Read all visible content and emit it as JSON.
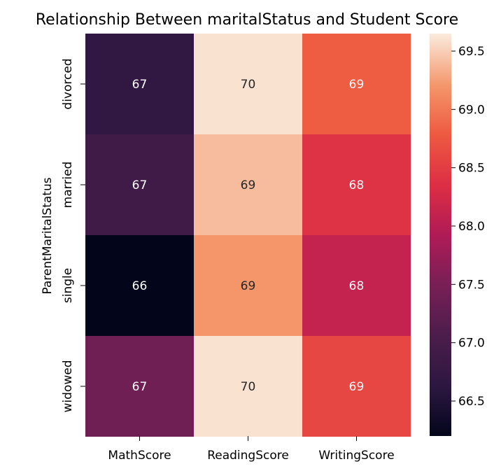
{
  "chart_data": {
    "type": "heatmap",
    "title": "Relationship Between maritalStatus and Student Score",
    "xlabel": "",
    "ylabel": "ParentMaritalStatus",
    "x_categories": [
      "MathScore",
      "ReadingScore",
      "WritingScore"
    ],
    "y_categories": [
      "divorced",
      "married",
      "single",
      "widowed"
    ],
    "values": [
      [
        66.7,
        69.6,
        68.8
      ],
      [
        66.9,
        69.4,
        68.4
      ],
      [
        66.2,
        69.2,
        68.1
      ],
      [
        67.4,
        69.6,
        68.6
      ]
    ],
    "annotations": [
      [
        "67",
        "70",
        "69"
      ],
      [
        "67",
        "69",
        "68"
      ],
      [
        "66",
        "69",
        "68"
      ],
      [
        "67",
        "70",
        "69"
      ]
    ],
    "colorbar": {
      "min": 66.2,
      "max": 69.65,
      "ticks": [
        "66.5",
        "67.0",
        "67.5",
        "68.0",
        "68.5",
        "69.0",
        "69.5"
      ],
      "colormap": "rocket"
    }
  }
}
